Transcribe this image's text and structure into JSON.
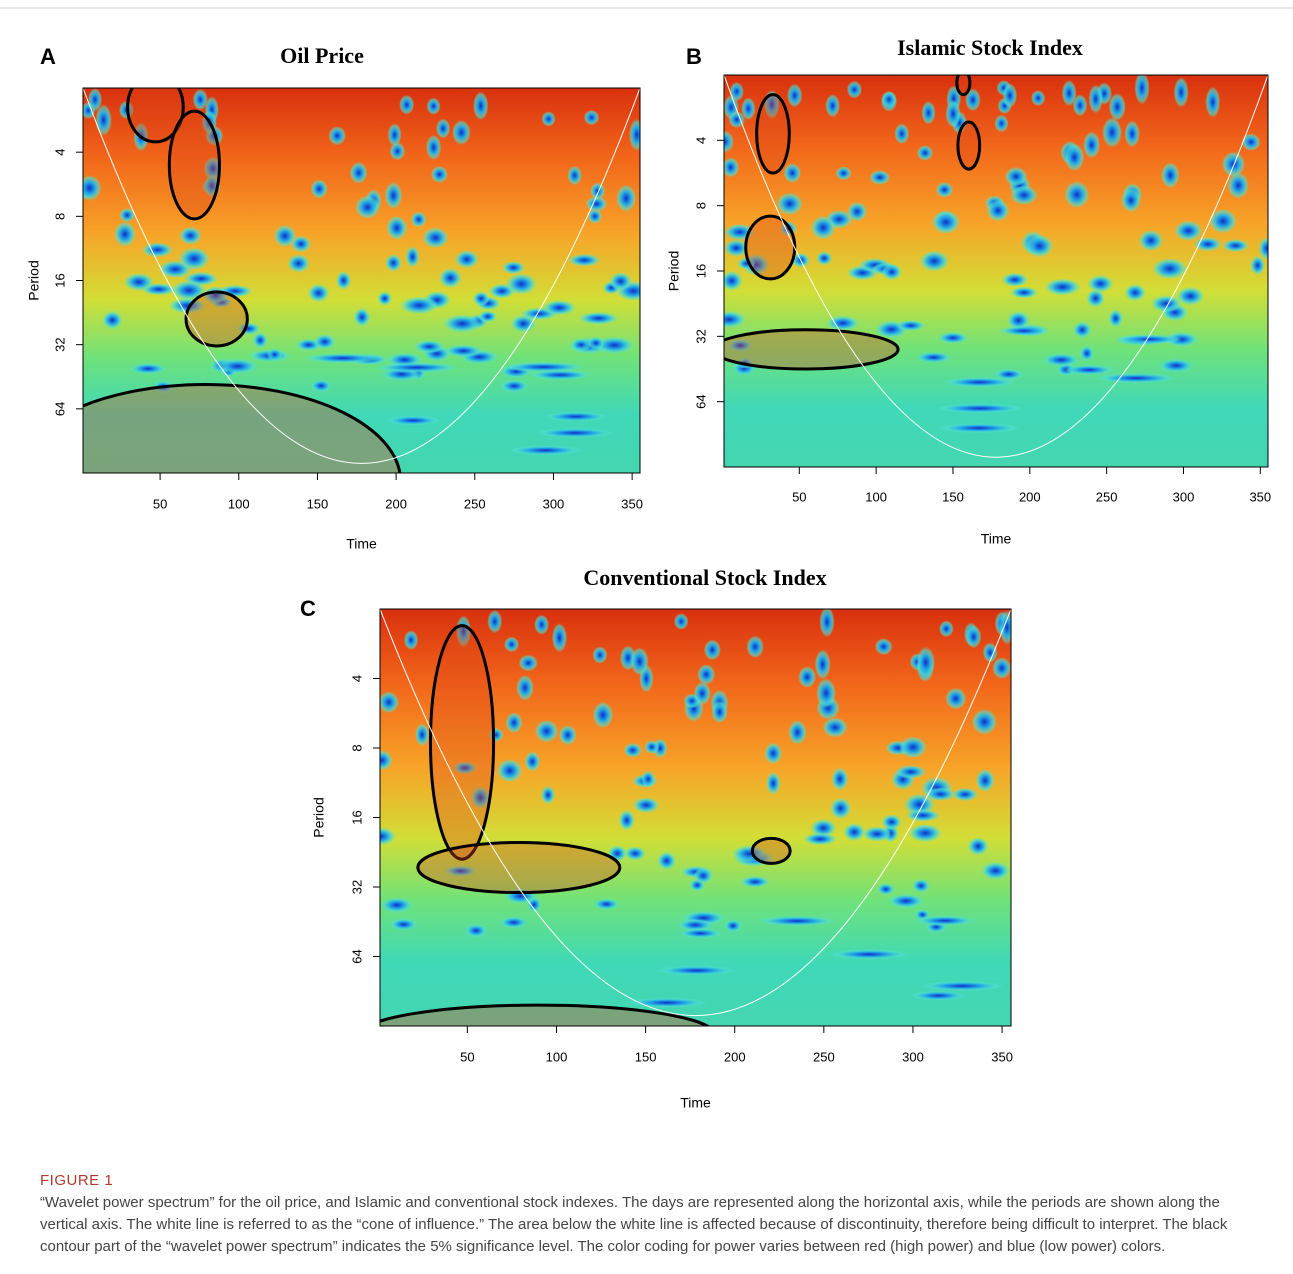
{
  "figure": {
    "label": "FIGURE 1",
    "caption": "“Wavelet power spectrum” for the oil price, and Islamic and conventional stock indexes. The days are represented along the horizontal axis, while the periods are shown along the vertical axis. The white line is referred to as the “cone of influence.” The area below the white line is affected because of discontinuity, therefore being difficult to interpret. The black contour part of the “wavelet power spectrum” indicates the 5% significance level. The color coding for power varies between red (high power) and blue (low power) colors."
  },
  "chart_data": [
    {
      "type": "heatmap",
      "panel": "A",
      "title": "Oil Price",
      "x_label": "Time",
      "y_label": "Period",
      "xlim": [
        1,
        355
      ],
      "xticks": [
        50,
        100,
        150,
        200,
        250,
        300,
        350
      ],
      "ylim": [
        2,
        128
      ],
      "yticks": [
        4,
        8,
        16,
        32,
        64
      ],
      "y_log_scale": true,
      "y_reversed": true
    },
    {
      "type": "heatmap",
      "panel": "B",
      "title": "Islamic Stock Index",
      "x_label": "Time",
      "y_label": "Period",
      "xlim": [
        1,
        355
      ],
      "xticks": [
        50,
        100,
        150,
        200,
        250,
        300,
        350
      ],
      "ylim": [
        2,
        128
      ],
      "yticks": [
        4,
        8,
        16,
        32,
        64
      ],
      "y_log_scale": true,
      "y_reversed": true
    },
    {
      "type": "heatmap",
      "panel": "C",
      "title": "Conventional Stock Index",
      "x_label": "Time",
      "y_label": "Period",
      "xlim": [
        1,
        355
      ],
      "xticks": [
        50,
        100,
        150,
        200,
        250,
        300,
        350
      ],
      "ylim": [
        2,
        128
      ],
      "yticks": [
        4,
        8,
        16,
        32,
        64
      ],
      "y_log_scale": true,
      "y_reversed": true
    }
  ]
}
